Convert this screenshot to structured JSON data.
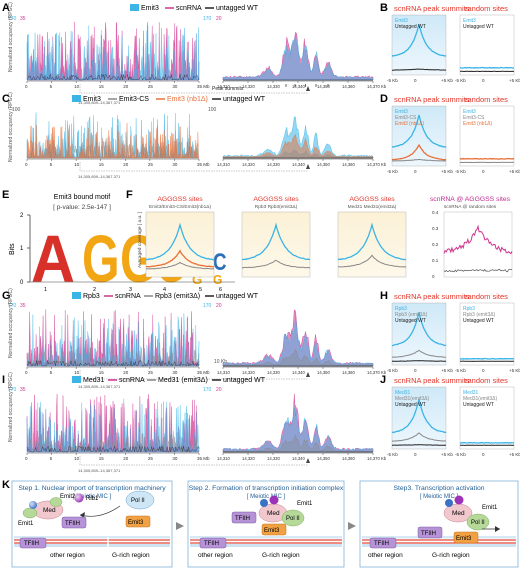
{
  "panels": {
    "A": {
      "letter": "A",
      "legend": [
        "Emit3",
        "scnRNA",
        "untagged WT"
      ],
      "scale_left": "170",
      "scale_right": "35",
      "scale2_left": "170",
      "scale2_right": "20",
      "ylabel": "Normalized occupancy (RPGC)",
      "coord_label": "14,305,809–14,367,371",
      "xticks": [
        "0",
        "5",
        "10",
        "15",
        "20",
        "25",
        "30",
        "35 Mb"
      ],
      "zoom_ticks": [
        "14,310",
        "14,320",
        "14,330",
        "14,340",
        "14,350",
        "14,360",
        "14,370 Kb"
      ],
      "peak_label": "Peak summits"
    },
    "B": {
      "letter": "B",
      "title1": "scnRNA peak summits",
      "title2": "random sites",
      "leg1": [
        "Emit3",
        "Untagged WT"
      ],
      "leg2": [
        "Emit3",
        "Untagged WT"
      ],
      "xt": [
        "-5 Kb",
        "0",
        "+5 Kb"
      ]
    },
    "C": {
      "letter": "C",
      "legend": [
        "Emit3",
        "Emit3-CS",
        "Emit3 (nb1Δ)",
        "untagged WT"
      ],
      "scale": "100",
      "ylabel": "Normalized occupancy (RPGC)",
      "coord_label": "14,305,809–14,367,371",
      "xticks": [
        "0",
        "5",
        "10",
        "15",
        "20",
        "25",
        "30",
        "35 Mb"
      ],
      "zoom_ticks": [
        "14,310",
        "14,320",
        "14,330",
        "14,340",
        "14,350",
        "14,360",
        "14,370 Kb"
      ]
    },
    "D": {
      "letter": "D",
      "title1": "scnRNA peak summits",
      "title2": "random sites",
      "leg1": [
        "Emit3",
        "Emit3-CS",
        "Emit3 (nb1Δ)"
      ],
      "leg2": [
        "Emit3",
        "Emit3-CS",
        "Emit3 (nb1Δ)"
      ],
      "xt": [
        "-5 Kb",
        "0",
        "+5 Kb"
      ]
    },
    "E": {
      "letter": "E",
      "title": "Emit3 bound motif",
      "pvalue": "[ p-value: 2.5e-147 ]",
      "ylabel": "Bits",
      "yt": [
        "0",
        "1",
        "2"
      ],
      "pos": [
        "1",
        "2",
        "3",
        "4",
        "5",
        "6"
      ]
    },
    "F": {
      "letter": "F",
      "titles": [
        "AGGGSS sites",
        "AGGGSS sites",
        "AGGGSS sites",
        "scnRNA @ AGGGSS sites"
      ],
      "subs": [
        "Emit3/Emit3-CS/Emit3(nb1Δ)",
        "Rpb3   Rpb3(emit3Δ)",
        "Med31   Med31(emit3Δ)",
        "scnRNA @ random sites"
      ],
      "ylabel": "Averaged coverage [ a.u. ]",
      "yt4": [
        "0.4",
        "0.3",
        "0.2",
        "0.1",
        "0"
      ]
    },
    "G": {
      "letter": "G",
      "legend": [
        "Rpb3",
        "scnRNA",
        "Rpb3 (emit3Δ)",
        "untagged WT"
      ],
      "scale_left": "170",
      "scale_right": "35",
      "scale2_left": "170",
      "scale2_right": "20",
      "ylabel": "Normalized occupancy (RPGC)",
      "coord_label": "14,305,809–14,367,371",
      "kb_label": "10 Kb",
      "xticks": [
        "0",
        "5",
        "10",
        "15",
        "20",
        "25",
        "30",
        "35 Mb"
      ],
      "zoom_ticks": [
        "14,310",
        "14,320",
        "14,330",
        "14,340",
        "14,350",
        "14,360",
        "14,370 Kb"
      ]
    },
    "H": {
      "letter": "H",
      "title1": "scnRNA peak summits",
      "title2": "random sites",
      "leg1": [
        "Rpb3",
        "Rpb3 (emit3Δ)",
        "Untagged WT"
      ],
      "leg2": [
        "Rpb3",
        "Rpb3 (emit3Δ)",
        "Untagged WT"
      ],
      "xt": [
        "-5 Kb",
        "0",
        "+5 Kb"
      ]
    },
    "I": {
      "letter": "I",
      "legend": [
        "Med31",
        "scnRNA",
        "Med31 (emit3Δ)",
        "untagged WT"
      ],
      "scale_left": "170",
      "scale_right": "35",
      "scale2_left": "170",
      "scale2_right": "20",
      "ylabel": "Normalized occupancy (RPGC)",
      "coord_label": "14,305,809–14,367,371",
      "xticks": [
        "0",
        "5",
        "10",
        "15",
        "20",
        "25",
        "30",
        "35 Mb"
      ],
      "zoom_ticks": [
        "14,310",
        "14,320",
        "14,330",
        "14,340",
        "14,350",
        "14,360",
        "14,370 Kb"
      ]
    },
    "J": {
      "letter": "J",
      "title1": "scnRNA peak summits",
      "title2": "random sites",
      "leg1": [
        "Med31",
        "Med31(emit3Δ)",
        "Untagged WT"
      ],
      "leg2": [
        "Med31",
        "Med31(emit3Δ)",
        "Untagged WT"
      ],
      "xt": [
        "-5 Kb",
        "0",
        "+5 Kb"
      ]
    },
    "K": {
      "letter": "K",
      "steps": [
        {
          "title": "Step 1. Nuclear import of transcription machinery",
          "sub": "[ Meiotic MIC ]"
        },
        {
          "title": "Step 2. Formation of transcription initiation complex",
          "sub": "[ Meiotic MIC ]"
        },
        {
          "title": "Step3. Transcription activation",
          "sub": "[ Meiotic MIC ]"
        }
      ],
      "labels": {
        "emit2": "Emit2",
        "rib1": "Rib1",
        "med": "Med",
        "emit1": "Emit1",
        "tfiih": "TFIIH",
        "emit3": "Emit3",
        "pol": "Pol II",
        "other": "other region",
        "grich": "G-rich region"
      }
    }
  },
  "colors": {
    "emit3": "#3bb4e6",
    "scnrna": "#d0338e",
    "wt": "#222222",
    "orange": "#e8703a",
    "gray": "#888888",
    "red_title": "#e2362b",
    "magenta_title": "#c02a8d"
  }
}
